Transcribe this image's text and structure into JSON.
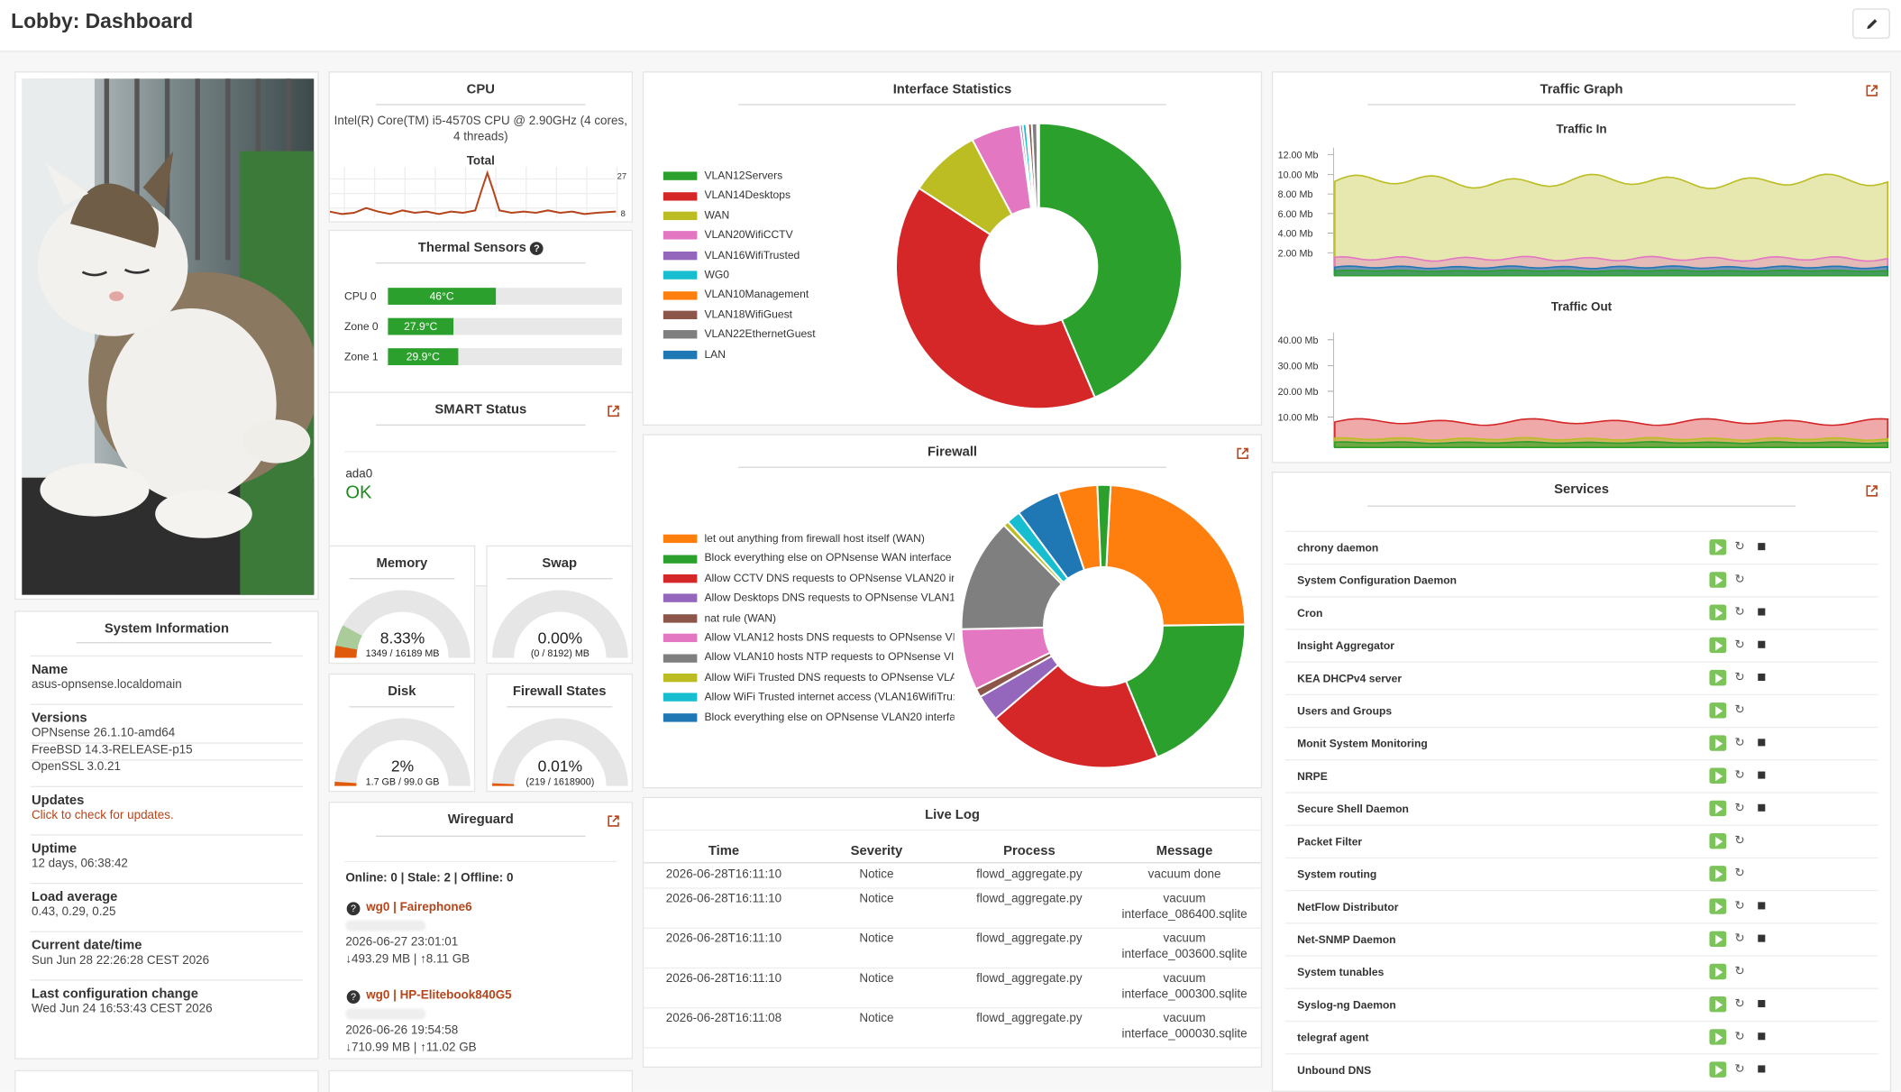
{
  "page": {
    "title": "Lobby: Dashboard"
  },
  "colors": {
    "green": "#2ca02c",
    "red": "#d62728",
    "orange": "#ff7f0e",
    "link": "#b5451b",
    "ok": "#1c8a1c"
  },
  "cpu": {
    "title": "CPU",
    "model": "Intel(R) Core(TM) i5-4570S CPU @ 2.90GHz (4 cores, 4 threads)",
    "graph_label": "Total",
    "y_max": "27",
    "y_min": "8"
  },
  "thermal": {
    "title": "Thermal Sensors",
    "sensors": [
      {
        "name": "CPU 0",
        "value": "46°C",
        "fill": 0.46
      },
      {
        "name": "Zone 0",
        "value": "27.9°C",
        "fill": 0.28
      },
      {
        "name": "Zone 1",
        "value": "29.9°C",
        "fill": 0.3
      }
    ]
  },
  "smart": {
    "title": "SMART Status",
    "device": "ada0",
    "status": "OK"
  },
  "memory": {
    "title": "Memory",
    "percent": "8.33%",
    "detail": "1349 / 16189 MB",
    "fraction": 0.0833
  },
  "swap": {
    "title": "Swap",
    "percent": "0.00%",
    "detail": "(0 / 8192) MB",
    "fraction": 0
  },
  "disk": {
    "title": "Disk",
    "percent": "2%",
    "detail": "1.7 GB / 99.0 GB",
    "fraction": 0.02
  },
  "fwstates": {
    "title": "Firewall States",
    "percent": "0.01%",
    "detail": "(219 / 1618900)",
    "fraction": 0.0001
  },
  "wireguard": {
    "title": "Wireguard",
    "summary": "Online: 0 | Stale: 2 | Offline: 0",
    "peers": [
      {
        "name": "wg0 | Fairephone6",
        "date": "2026-06-27 23:01:01",
        "traffic": "↓493.29 MB | ↑8.11 GB"
      },
      {
        "name": "wg0 | HP-Elitebook840G5",
        "date": "2026-06-26 19:54:58",
        "traffic": "↓710.99 MB | ↑11.02 GB"
      }
    ]
  },
  "sysinfo": {
    "title": "System Information",
    "rows": [
      {
        "label": "Name",
        "values": [
          "asus-opnsense.localdomain"
        ]
      },
      {
        "label": "Versions",
        "values": [
          "OPNsense 26.1.10-amd64",
          "FreeBSD 14.3-RELEASE-p15",
          "OpenSSL 3.0.21"
        ]
      },
      {
        "label": "Updates",
        "values": [
          "Click to check for updates."
        ],
        "link": true
      },
      {
        "label": "Uptime",
        "values": [
          "12 days, 06:38:42"
        ]
      },
      {
        "label": "Load average",
        "values": [
          "0.43, 0.29, 0.25"
        ]
      },
      {
        "label": "Current date/time",
        "values": [
          "Sun Jun 28 22:26:28 CEST 2026"
        ]
      },
      {
        "label": "Last configuration change",
        "values": [
          "Wed Jun 24 16:53:43 CEST 2026"
        ]
      }
    ]
  },
  "iface": {
    "title": "Interface Statistics",
    "legend": [
      {
        "name": "VLAN12Servers",
        "color": "#2ca02c",
        "value": 43
      },
      {
        "name": "VLAN14Desktops",
        "color": "#d62728",
        "value": 40
      },
      {
        "name": "WAN",
        "color": "#bcbd22",
        "value": 8
      },
      {
        "name": "VLAN20WifiCCTV",
        "color": "#e377c2",
        "value": 5.5
      },
      {
        "name": "VLAN16WifiTrusted",
        "color": "#9467bd",
        "value": 0.3
      },
      {
        "name": "WG0",
        "color": "#17becf",
        "value": 0.4
      },
      {
        "name": "VLAN10Management",
        "color": "#ff7f0e",
        "value": 0.2
      },
      {
        "name": "VLAN18WifiGuest",
        "color": "#8c564b",
        "value": 0.4
      },
      {
        "name": "VLAN22EthernetGuest",
        "color": "#7f7f7f",
        "value": 0.6
      },
      {
        "name": "LAN",
        "color": "#1f77b4",
        "value": 0.2
      }
    ]
  },
  "firewall": {
    "title": "Firewall",
    "legend": [
      {
        "name": "let out anything from firewall host itself (WAN)",
        "color": "#ff7f0e",
        "value": 24
      },
      {
        "name": "Block everything else on OPNsense WAN interface",
        "color": "#2ca02c",
        "value": 19
      },
      {
        "name": "Allow CCTV DNS requests to OPNsense VLAN20 ir",
        "color": "#d62728",
        "value": 20
      },
      {
        "name": "Allow Desktops DNS requests to OPNsense VLAN1",
        "color": "#9467bd",
        "value": 3
      },
      {
        "name": "nat rule (WAN)",
        "color": "#8c564b",
        "value": 1
      },
      {
        "name": "Allow VLAN12 hosts DNS requests to OPNsense VI",
        "color": "#e377c2",
        "value": 7
      },
      {
        "name": "Allow VLAN10 hosts NTP requests to OPNsense VI",
        "color": "#7f7f7f",
        "value": 13
      },
      {
        "name": "Allow WiFi Trusted DNS requests to OPNsense VLA",
        "color": "#bcbd22",
        "value": 0.6
      },
      {
        "name": "Allow WiFi Trusted internet access (VLAN16WifiTru:",
        "color": "#17becf",
        "value": 1.6
      },
      {
        "name": "Block everything else on OPNsense VLAN20 interfa",
        "color": "#1f77b4",
        "value": 5
      },
      {
        "name": "",
        "color": "#ff7f0e",
        "value": 4.5
      },
      {
        "name": "",
        "color": "#2ca02c",
        "value": 1.5
      }
    ]
  },
  "traffic": {
    "title": "Traffic Graph",
    "in_title": "Traffic In",
    "out_title": "Traffic Out",
    "in_ticks": [
      "12.00 Mb",
      "10.00 Mb",
      "8.00 Mb",
      "6.00 Mb",
      "4.00 Mb",
      "2.00 Mb"
    ],
    "out_ticks": [
      "40.00 Mb",
      "30.00 Mb",
      "20.00 Mb",
      "10.00 Mb"
    ]
  },
  "livelog": {
    "title": "Live Log",
    "headers": [
      "Time",
      "Severity",
      "Process",
      "Message"
    ],
    "rows": [
      {
        "time": "2026-06-28T16:11:10",
        "severity": "Notice",
        "process": "flowd_aggregate.py",
        "message": [
          "vacuum done"
        ]
      },
      {
        "time": "2026-06-28T16:11:10",
        "severity": "Notice",
        "process": "flowd_aggregate.py",
        "message": [
          "vacuum",
          "interface_086400.sqlite"
        ]
      },
      {
        "time": "2026-06-28T16:11:10",
        "severity": "Notice",
        "process": "flowd_aggregate.py",
        "message": [
          "vacuum",
          "interface_003600.sqlite"
        ]
      },
      {
        "time": "2026-06-28T16:11:10",
        "severity": "Notice",
        "process": "flowd_aggregate.py",
        "message": [
          "vacuum",
          "interface_000300.sqlite"
        ]
      },
      {
        "time": "2026-06-28T16:11:08",
        "severity": "Notice",
        "process": "flowd_aggregate.py",
        "message": [
          "vacuum",
          "interface_000030.sqlite"
        ]
      }
    ]
  },
  "services": {
    "title": "Services",
    "items": [
      {
        "name": "chrony daemon",
        "stop": true
      },
      {
        "name": "System Configuration Daemon",
        "stop": false
      },
      {
        "name": "Cron",
        "stop": true
      },
      {
        "name": "Insight Aggregator",
        "stop": true
      },
      {
        "name": "KEA DHCPv4 server",
        "stop": true
      },
      {
        "name": "Users and Groups",
        "stop": false
      },
      {
        "name": "Monit System Monitoring",
        "stop": true
      },
      {
        "name": "NRPE",
        "stop": true
      },
      {
        "name": "Secure Shell Daemon",
        "stop": true
      },
      {
        "name": "Packet Filter",
        "stop": false
      },
      {
        "name": "System routing",
        "stop": false
      },
      {
        "name": "NetFlow Distributor",
        "stop": true
      },
      {
        "name": "Net-SNMP Daemon",
        "stop": true
      },
      {
        "name": "System tunables",
        "stop": false
      },
      {
        "name": "Syslog-ng Daemon",
        "stop": true
      },
      {
        "name": "telegraf agent",
        "stop": true
      },
      {
        "name": "Unbound DNS",
        "stop": true
      }
    ]
  }
}
